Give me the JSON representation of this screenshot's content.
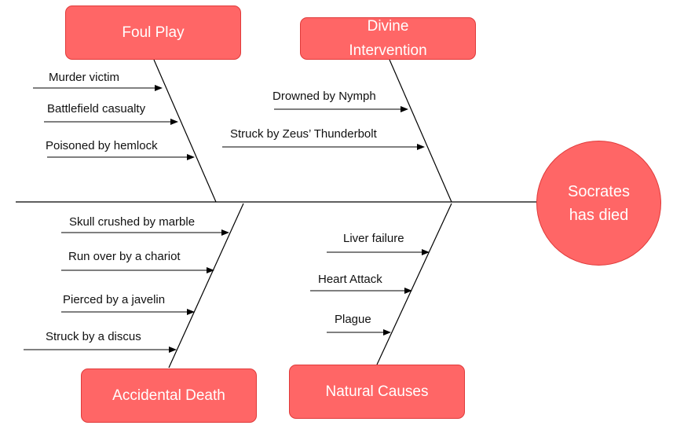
{
  "effect": {
    "label": "Socrates has died"
  },
  "categories": {
    "foul_play": {
      "label": "Foul Play",
      "causes": [
        "Murder victim",
        "Battlefield casualty",
        "Poisoned by hemlock"
      ]
    },
    "divine_intervention": {
      "label": "Divine Intervention",
      "causes": [
        "Drowned by Nymph",
        "Struck by Zeus’ Thunderbolt"
      ]
    },
    "accidental_death": {
      "label": "Accidental Death",
      "causes": [
        "Skull crushed by marble",
        "Run over by a chariot",
        "Pierced by a javelin",
        "Struck by a discus"
      ]
    },
    "natural_causes": {
      "label": "Natural Causes",
      "causes": [
        "Liver failure",
        "Heart Attack",
        "Plague"
      ]
    }
  },
  "colors": {
    "box_fill": "#ff6666",
    "box_border": "#e03a3a",
    "line": "#000000",
    "text_on_box": "#ffffff"
  }
}
